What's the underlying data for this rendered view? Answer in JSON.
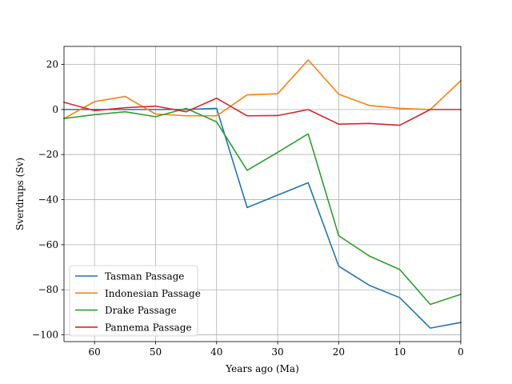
{
  "chart_data": {
    "type": "line",
    "title": "",
    "xlabel": "Years ago (Ma)",
    "ylabel": "Sverdrups (Sv)",
    "xlim": [
      65,
      0
    ],
    "ylim": [
      -103,
      28
    ],
    "x_inverted": true,
    "grid": true,
    "legend_position": "lower-left",
    "x_ticks": [
      60,
      50,
      40,
      30,
      20,
      10,
      0
    ],
    "y_ticks": [
      20,
      0,
      -20,
      -40,
      -60,
      -80,
      -100
    ],
    "x_tick_labels": [
      "60",
      "50",
      "40",
      "30",
      "20",
      "10",
      "0"
    ],
    "y_tick_labels": [
      "20",
      "0",
      "−20",
      "−40",
      "−60",
      "−80",
      "−100"
    ],
    "x": [
      65,
      60,
      55,
      50,
      45,
      40,
      35,
      30,
      25,
      20,
      15,
      10,
      5,
      0
    ],
    "series": [
      {
        "name": "Tasman Passage",
        "color": "#1f77b4",
        "values": [
          0,
          0,
          0,
          0,
          0,
          0.5,
          -43.5,
          -38,
          -32.5,
          -69.5,
          -78,
          -83.5,
          -97,
          -94.5
        ]
      },
      {
        "name": "Indonesian Passage",
        "color": "#ff7f0e",
        "values": [
          -4,
          3.5,
          5.8,
          -2,
          -2.8,
          -2.8,
          6.5,
          7,
          22,
          6.8,
          1.8,
          0.5,
          0,
          12.8
        ]
      },
      {
        "name": "Drake Passage",
        "color": "#2ca02c",
        "values": [
          -4,
          -2.3,
          -1,
          -3.2,
          0.5,
          -5.5,
          -27,
          -19,
          -10.8,
          -56,
          -65,
          -71,
          -86.5,
          -82
        ]
      },
      {
        "name": "Pannema Passage",
        "color": "#d62728",
        "values": [
          3.2,
          -0.5,
          0.8,
          1.5,
          -1,
          5,
          -2.8,
          -2.7,
          0,
          -6.5,
          -6.2,
          -7,
          0,
          0
        ]
      }
    ]
  }
}
